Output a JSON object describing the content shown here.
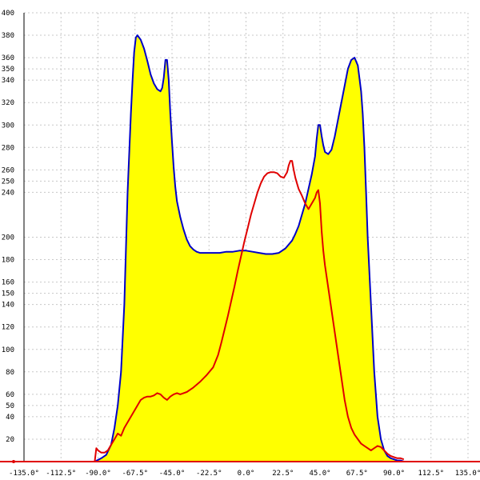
{
  "chart_data": {
    "type": "area",
    "title": "",
    "xlabel": "",
    "ylabel": "",
    "xlim": [
      -135,
      135
    ],
    "ylim": [
      0,
      400
    ],
    "grid": true,
    "x_ticks": [
      -135,
      -112.5,
      -90,
      -67.5,
      -45,
      -22.5,
      0,
      22.5,
      45,
      67.5,
      90,
      112.5,
      135
    ],
    "x_tick_labels": [
      "-135.0°",
      "-112.5°",
      "-90.0°",
      "-67.5°",
      "-45.0°",
      "-22.5°",
      "0.0°",
      "22.5°",
      "45.0°",
      "67.5°",
      "90.0°",
      "112.5°",
      "135.0°"
    ],
    "y_ticks": [
      20,
      40,
      50,
      60,
      80,
      100,
      120,
      140,
      150,
      160,
      180,
      200,
      240,
      250,
      260,
      280,
      300,
      320,
      340,
      350,
      360,
      380,
      400
    ],
    "y_tick_labels": [
      "20",
      "40",
      "50",
      "60",
      "80",
      "100",
      "120",
      "140",
      "150",
      "160",
      "180",
      "200",
      "240",
      "250",
      "260",
      "280",
      "300",
      "320",
      "340",
      "350",
      "360",
      "380",
      "400"
    ],
    "colors": {
      "fill": "#ffff00",
      "envelope": "#0000c8",
      "profile": "#e00000",
      "baseline": "#e00000"
    },
    "series": [
      {
        "color": "#0000c8",
        "fill": "#ffff00",
        "x": [
          -92,
          -88,
          -85,
          -82,
          -80,
          -78,
          -76,
          -74,
          -72,
          -70,
          -69,
          -68,
          -67,
          -66,
          -64,
          -62,
          -60,
          -58,
          -56,
          -54,
          -52,
          -51,
          -50,
          -49,
          -48,
          -47,
          -46,
          -45,
          -44,
          -43,
          -42,
          -40,
          -38,
          -36,
          -34,
          -32,
          -30,
          -28,
          -26,
          -24,
          -22,
          -20,
          -16,
          -12,
          -8,
          -4,
          0,
          4,
          8,
          12,
          16,
          20,
          24,
          28,
          30,
          32,
          34,
          36,
          38,
          40,
          42,
          43,
          44,
          45,
          46,
          47,
          48,
          50,
          52,
          54,
          56,
          58,
          60,
          62,
          64,
          66,
          68,
          70,
          71,
          72,
          73,
          74,
          76,
          78,
          80,
          82,
          84,
          86,
          88,
          90,
          92,
          94,
          96,
          98
        ],
        "y": [
          0,
          3,
          6,
          15,
          30,
          50,
          80,
          140,
          240,
          310,
          340,
          365,
          378,
          380,
          376,
          368,
          357,
          345,
          337,
          332,
          330,
          333,
          342,
          358,
          358,
          340,
          310,
          285,
          262,
          245,
          232,
          218,
          207,
          198,
          192,
          189,
          187,
          186,
          186,
          186,
          186,
          186,
          186,
          187,
          187,
          188,
          188,
          187,
          186,
          185,
          185,
          186,
          190,
          197,
          203,
          210,
          220,
          230,
          243,
          256,
          272,
          288,
          300,
          300,
          290,
          282,
          276,
          274,
          278,
          290,
          305,
          320,
          335,
          350,
          358,
          360,
          353,
          330,
          310,
          280,
          240,
          200,
          140,
          80,
          40,
          20,
          10,
          5,
          3,
          2,
          1,
          1,
          0,
          0
        ]
      },
      {
        "color": "#e00000",
        "x": [
          -92,
          -91,
          -90,
          -88,
          -86,
          -84,
          -82,
          -80,
          -78,
          -76,
          -74,
          -72,
          -70,
          -68,
          -66,
          -64,
          -62,
          -60,
          -58,
          -56,
          -54,
          -52,
          -50,
          -48,
          -46,
          -44,
          -42,
          -40,
          -36,
          -32,
          -28,
          -24,
          -20,
          -17,
          -15,
          -13,
          -11,
          -9,
          -7,
          -5,
          -3,
          -1,
          1,
          3,
          5,
          7,
          9,
          11,
          13,
          15,
          17,
          19,
          21,
          23,
          25,
          26,
          27,
          28,
          29,
          30,
          31,
          32,
          34,
          36,
          38,
          40,
          42,
          43,
          44,
          45,
          46,
          47,
          48,
          50,
          52,
          54,
          56,
          58,
          60,
          62,
          64,
          66,
          68,
          70,
          72,
          74,
          76,
          78,
          80,
          82,
          84,
          86,
          88,
          90,
          92,
          94,
          96
        ],
        "y": [
          0,
          12,
          10,
          8,
          8,
          10,
          15,
          20,
          25,
          23,
          30,
          35,
          40,
          45,
          50,
          55,
          57,
          58,
          58,
          59,
          61,
          60,
          57,
          55,
          58,
          60,
          61,
          60,
          62,
          66,
          71,
          77,
          84,
          95,
          106,
          118,
          130,
          143,
          156,
          170,
          183,
          196,
          208,
          220,
          230,
          240,
          248,
          254,
          257,
          258,
          258,
          257,
          254,
          253,
          258,
          264,
          268,
          268,
          260,
          253,
          248,
          243,
          237,
          230,
          225,
          230,
          235,
          240,
          242,
          230,
          205,
          188,
          175,
          155,
          135,
          115,
          95,
          75,
          55,
          40,
          30,
          24,
          20,
          16,
          14,
          12,
          10,
          12,
          14,
          13,
          10,
          7,
          5,
          4,
          3,
          3,
          2
        ]
      }
    ]
  }
}
